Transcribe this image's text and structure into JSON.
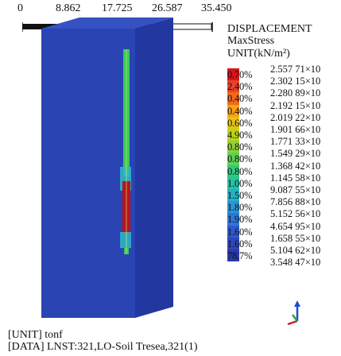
{
  "scale": {
    "ticks": [
      "0",
      "8.862",
      "17.725",
      "26.587",
      "35.450"
    ]
  },
  "header": {
    "title": "DISPLACEMENT",
    "subtitle": "MaxStress",
    "unit": "UNIT(kN/m²)"
  },
  "legend": {
    "rows": [
      {
        "pct": "0.70%",
        "val": "2.557 71×10",
        "color": "#d4151a"
      },
      {
        "pct": "2.40%",
        "val": "2.302 15×10",
        "color": "#e8412a"
      },
      {
        "pct": "0.40%",
        "val": "2.280 89×10",
        "color": "#ef6a1d"
      },
      {
        "pct": "0.40%",
        "val": "2.192 15×10",
        "color": "#f5a11a"
      },
      {
        "pct": "0.60%",
        "val": "2.019 22×10",
        "color": "#e3c318"
      },
      {
        "pct": "4.90%",
        "val": "1.901 66×10",
        "color": "#bcd21c"
      },
      {
        "pct": "0.80%",
        "val": "1.771 33×10",
        "color": "#8fd13a"
      },
      {
        "pct": "0.80%",
        "val": "1.549 29×10",
        "color": "#5fd05a"
      },
      {
        "pct": "0.80%",
        "val": "1.368 42×10",
        "color": "#34c87e"
      },
      {
        "pct": "1.00%",
        "val": "1.145 58×10",
        "color": "#26c0a5"
      },
      {
        "pct": "1.50%",
        "val": "9.087 55×10",
        "color": "#26b0c6"
      },
      {
        "pct": "1.80%",
        "val": "7.856 88×10",
        "color": "#2a94d6"
      },
      {
        "pct": "1.90%",
        "val": "5.152 56×10",
        "color": "#2d76d6"
      },
      {
        "pct": "1.60%",
        "val": "4.654 95×10",
        "color": "#3058c8"
      },
      {
        "pct": "1.60%",
        "val": "1.658 55×10",
        "color": "#2f46b8"
      },
      {
        "pct": "78.7%",
        "val": "5.104 62×10",
        "color": "#2a3aa8"
      },
      {
        "pct": "",
        "val": "3.548 47×10",
        "color": ""
      }
    ]
  },
  "colors": {
    "soil_front": "#2a44b4",
    "soil_side": "#2237a0",
    "soil_top": "#3552c2",
    "pile_red": "#b8141c",
    "pile_green": "#3cc85a"
  },
  "footer": {
    "unit_line": "[UNIT] tonf",
    "data_line": "[DATA] LNST:321,LO-Soil Tresea,321(1)"
  },
  "axis_icon": "xyz-axis-triad-icon"
}
